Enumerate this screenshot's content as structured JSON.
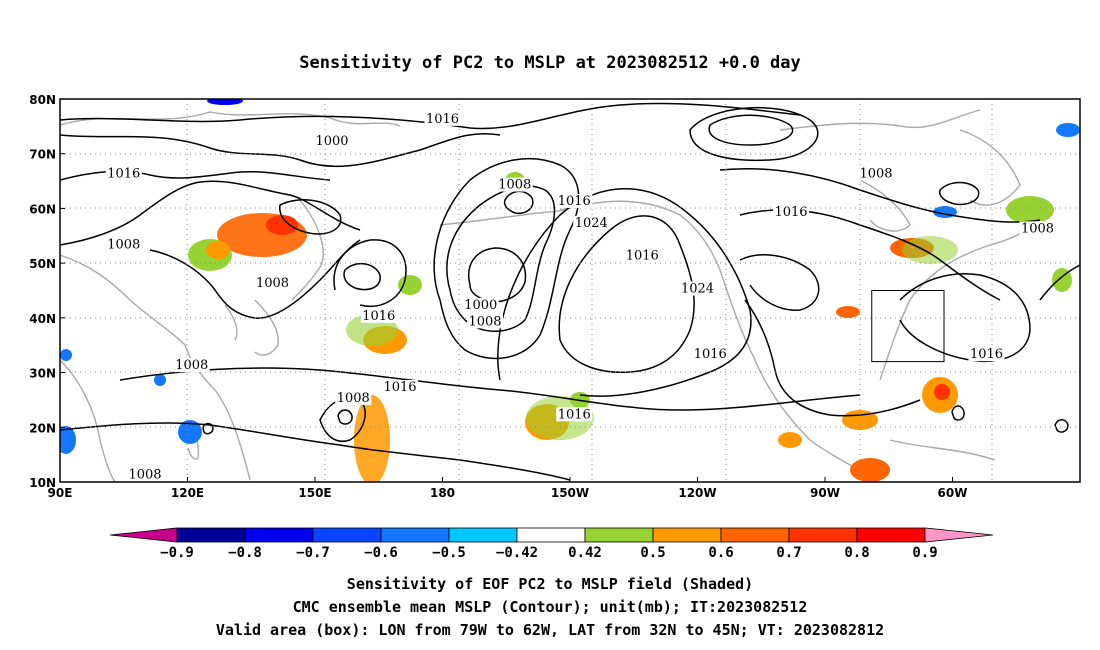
{
  "title": "Sensitivity of PC2 to MSLP at 2023082512 +0.0 day",
  "map": {
    "lon_labels": [
      "90E",
      "120E",
      "150E",
      "180",
      "150W",
      "120W",
      "90W",
      "60W"
    ],
    "lat_labels": [
      "80N",
      "70N",
      "60N",
      "50N",
      "40N",
      "30N",
      "20N",
      "10N"
    ],
    "lon_range": [
      90,
      330
    ],
    "lat_range": [
      10,
      80
    ],
    "contour_labels": [
      {
        "text": "1016",
        "lon": 180,
        "lat": 76
      },
      {
        "text": "1016",
        "lon": 105,
        "lat": 66
      },
      {
        "text": "1008",
        "lon": 197,
        "lat": 64
      },
      {
        "text": "1000",
        "lon": 154,
        "lat": 72
      },
      {
        "text": "1008",
        "lon": 282,
        "lat": 66
      },
      {
        "text": "1016",
        "lon": 211,
        "lat": 61
      },
      {
        "text": "1024",
        "lon": 215,
        "lat": 57
      },
      {
        "text": "1016",
        "lon": 262,
        "lat": 59
      },
      {
        "text": "1008",
        "lon": 105,
        "lat": 53
      },
      {
        "text": "1008",
        "lon": 140,
        "lat": 46
      },
      {
        "text": "1016",
        "lon": 227,
        "lat": 51
      },
      {
        "text": "1024",
        "lon": 240,
        "lat": 45
      },
      {
        "text": "1008",
        "lon": 320,
        "lat": 56
      },
      {
        "text": "1016",
        "lon": 165,
        "lat": 40
      },
      {
        "text": "1000",
        "lon": 189,
        "lat": 42
      },
      {
        "text": "1008",
        "lon": 190,
        "lat": 39
      },
      {
        "text": "1016",
        "lon": 243,
        "lat": 33
      },
      {
        "text": "1016",
        "lon": 308,
        "lat": 33
      },
      {
        "text": "1016",
        "lon": 170,
        "lat": 27
      },
      {
        "text": "1008",
        "lon": 121,
        "lat": 31
      },
      {
        "text": "1008",
        "lon": 159,
        "lat": 25
      },
      {
        "text": "1016",
        "lon": 211,
        "lat": 22
      },
      {
        "text": "1008",
        "lon": 110,
        "lat": 11
      }
    ],
    "valid_box": {
      "lon_min": 281,
      "lon_max": 298,
      "lat_min": 32,
      "lat_max": 45
    }
  },
  "colorbar": {
    "levels": [
      "-0.9",
      "-0.8",
      "-0.7",
      "-0.6",
      "-0.5",
      "-0.42",
      "0.42",
      "0.5",
      "0.6",
      "0.7",
      "0.8",
      "0.9"
    ],
    "colors": [
      "#000099",
      "#0000f0",
      "#0a46ff",
      "#1478ff",
      "#00c8ff",
      "#ffffff",
      "#96d232",
      "#ff9900",
      "#ff6400",
      "#ff3200",
      "#ff0000"
    ],
    "low_extend_color": "#c8008c",
    "high_extend_color": "#ff96c8"
  },
  "captions": {
    "line1": "Sensitivity of EOF PC2 to MSLP field (Shaded)",
    "line2": "CMC ensemble mean MSLP (Contour); unit(mb); IT:2023082512",
    "line3": "Valid area (box): LON from 79W to 62W, LAT from 32N to 45N; VT: 2023082812"
  },
  "colors": {
    "land": "#a8a8a8",
    "contour": "#000000",
    "positive": "#ff6400",
    "negative": "#1478ff"
  }
}
